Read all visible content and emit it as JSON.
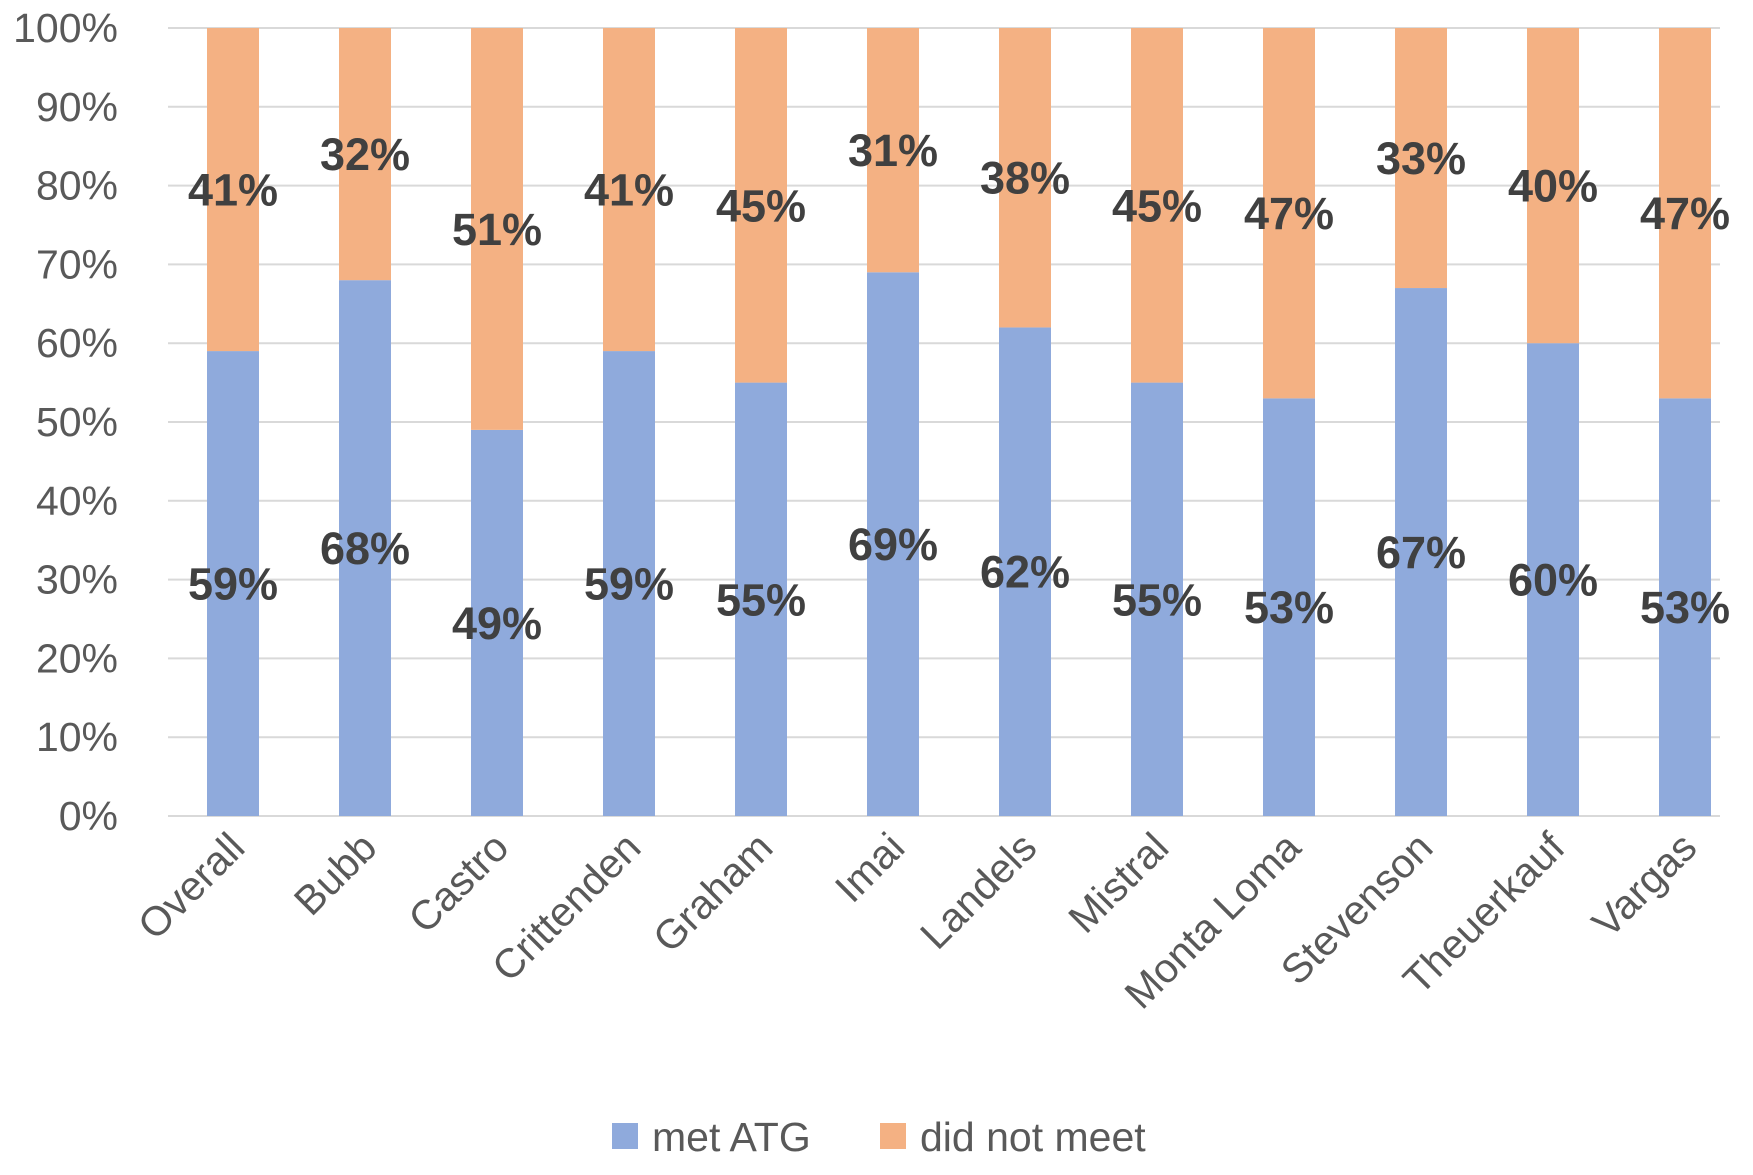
{
  "chart_data": {
    "type": "bar",
    "stacked": true,
    "percent_stacked": true,
    "categories": [
      "Overall",
      "Bubb",
      "Castro",
      "Crittenden",
      "Graham",
      "Imai",
      "Landels",
      "Mistral",
      "Monta Loma",
      "Stevenson",
      "Theuerkauf",
      "Vargas"
    ],
    "series": [
      {
        "name": "met ATG",
        "color": "#8faadc",
        "values": [
          59,
          68,
          49,
          59,
          55,
          69,
          62,
          55,
          53,
          67,
          60,
          53
        ],
        "labels": [
          "59%",
          "68%",
          "49%",
          "59%",
          "55%",
          "69%",
          "62%",
          "55%",
          "53%",
          "67%",
          "60%",
          "53%"
        ]
      },
      {
        "name": "did not meet",
        "color": "#f4b183",
        "values": [
          41,
          32,
          51,
          41,
          45,
          31,
          38,
          45,
          47,
          33,
          40,
          47
        ],
        "labels": [
          "41%",
          "32%",
          "51%",
          "41%",
          "45%",
          "31%",
          "38%",
          "45%",
          "47%",
          "33%",
          "40%",
          "47%"
        ]
      }
    ],
    "ylim": [
      0,
      100
    ],
    "y_ticks": [
      0,
      10,
      20,
      30,
      40,
      50,
      60,
      70,
      80,
      90,
      100
    ],
    "y_tick_labels": [
      "0%",
      "10%",
      "20%",
      "30%",
      "40%",
      "50%",
      "60%",
      "70%",
      "80%",
      "90%",
      "100%"
    ],
    "x_tick_rotation": -45,
    "grid": true,
    "gridline_color": "#d9d9d9",
    "legend_position": "bottom"
  }
}
